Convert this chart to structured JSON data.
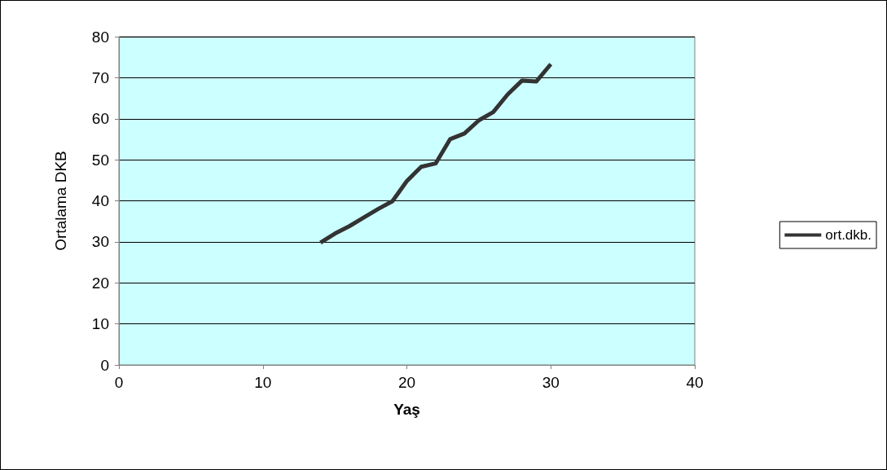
{
  "chart_data": {
    "type": "line",
    "xlabel": "Yaş",
    "ylabel": "Ortalama DKB",
    "series": [
      {
        "name": "ort.dkb.",
        "color": "#333333",
        "x": [
          14,
          15,
          16,
          17,
          18,
          19,
          20,
          21,
          22,
          23,
          24,
          25,
          26,
          27,
          28,
          29,
          30
        ],
        "values": [
          29.8,
          32,
          33.8,
          35.9,
          38,
          39.9,
          44.8,
          48.3,
          49.1,
          55,
          56.4,
          59.6,
          61.6,
          65.9,
          69.3,
          69.1,
          73.3
        ]
      }
    ],
    "xlim": [
      0,
      40
    ],
    "xticks": [
      0,
      10,
      20,
      30,
      40
    ],
    "ylim": [
      0,
      80
    ],
    "yticks": [
      0,
      10,
      20,
      30,
      40,
      50,
      60,
      70,
      80
    ],
    "grid": "y",
    "legend": "right",
    "marker": "none",
    "line_style": "solid"
  }
}
